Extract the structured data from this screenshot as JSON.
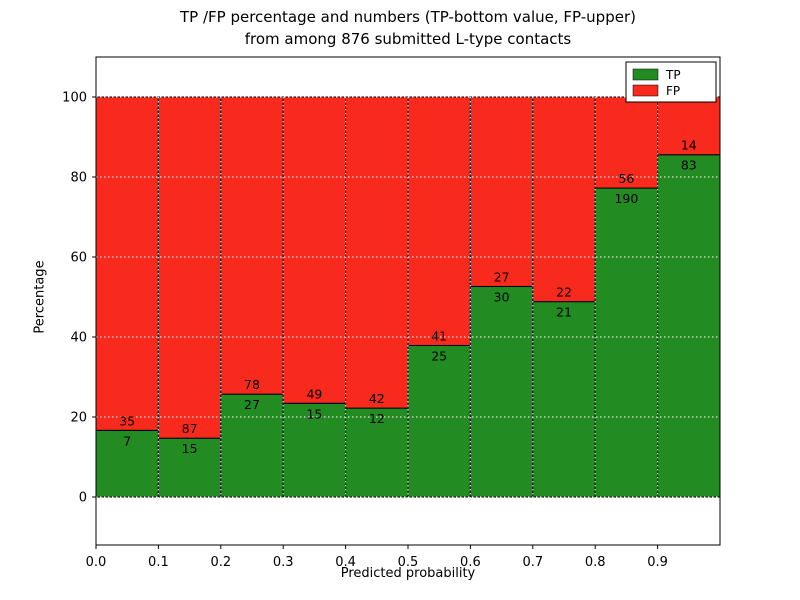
{
  "figure": {
    "title_line1": "TP /FP percentage and numbers (TP-bottom value, FP-upper)",
    "title_line2": "from among 876 submitted L-type contacts",
    "xlabel": "Predicted probability",
    "ylabel": "Percentage"
  },
  "legend": {
    "position": "upper right",
    "items": [
      {
        "label": "TP",
        "color": "#228b22"
      },
      {
        "label": "FP",
        "color": "#f8291d"
      }
    ]
  },
  "chart_data": {
    "type": "bar",
    "stacked": true,
    "title": "TP /FP percentage and numbers (TP-bottom value, FP-upper) from among 876 submitted L-type contacts",
    "xlabel": "Predicted probability",
    "ylabel": "Percentage",
    "total_contacts": 876,
    "x_bins": [
      [
        0.0,
        0.1
      ],
      [
        0.1,
        0.2
      ],
      [
        0.2,
        0.3
      ],
      [
        0.3,
        0.4
      ],
      [
        0.4,
        0.5
      ],
      [
        0.5,
        0.6
      ],
      [
        0.6,
        0.7
      ],
      [
        0.7,
        0.8
      ],
      [
        0.8,
        0.9
      ],
      [
        0.9,
        1.0
      ]
    ],
    "x_tick_labels": [
      "0.0",
      "0.1",
      "0.2",
      "0.3",
      "0.4",
      "0.5",
      "0.6",
      "0.7",
      "0.8",
      "0.9"
    ],
    "y_ticks": [
      0,
      20,
      40,
      60,
      80,
      100
    ],
    "xlim": [
      0.0,
      1.0
    ],
    "ylim": [
      -12,
      110
    ],
    "grid": true,
    "bar_value_labels": "counts (TP below segment boundary, FP above)",
    "series": [
      {
        "name": "TP",
        "color": "#228b22",
        "counts": [
          7,
          15,
          27,
          15,
          12,
          25,
          30,
          21,
          190,
          83
        ],
        "percent": [
          16.7,
          14.7,
          25.7,
          23.4,
          22.2,
          37.9,
          52.6,
          48.8,
          77.2,
          85.6
        ]
      },
      {
        "name": "FP",
        "color": "#f8291d",
        "counts": [
          35,
          87,
          78,
          49,
          42,
          41,
          27,
          22,
          56,
          14
        ],
        "percent": [
          83.3,
          85.3,
          74.3,
          76.6,
          77.8,
          62.1,
          47.4,
          51.2,
          22.8,
          14.4
        ]
      }
    ]
  }
}
